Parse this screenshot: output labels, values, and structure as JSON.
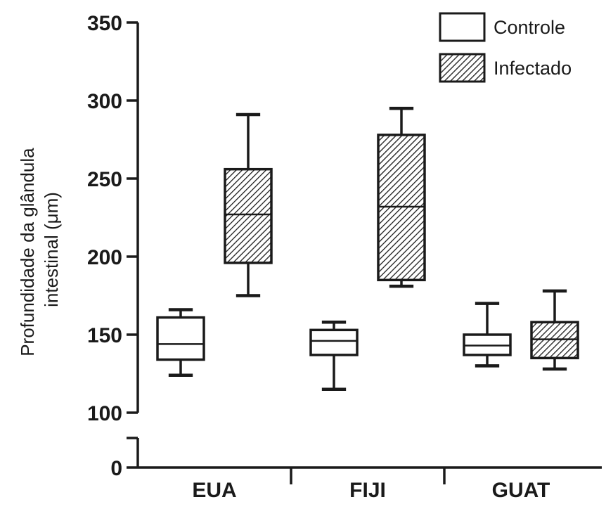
{
  "chart_data": {
    "type": "box",
    "categories": [
      "EUA",
      "FIJI",
      "GUAT"
    ],
    "ylabel_lines": [
      "Profundidade da glândula",
      "intestinal (μm)"
    ],
    "yticks": [
      100,
      150,
      200,
      250,
      300,
      350
    ],
    "ytick_zero": 0,
    "ylim": [
      100,
      350
    ],
    "axis_break": true,
    "legend_position": "top-right",
    "colors": {
      "line": "#1a1a1a",
      "controle_fill": "#ffffff",
      "infectado_hatch": "#1a1a1a"
    },
    "series": [
      {
        "name": "Controle",
        "boxes": [
          {
            "category": "EUA",
            "min": 124,
            "q1": 134,
            "median": 144,
            "q3": 161,
            "max": 166
          },
          {
            "category": "FIJI",
            "min": 115,
            "q1": 137,
            "median": 146,
            "q3": 153,
            "max": 158
          },
          {
            "category": "GUAT",
            "min": 130,
            "q1": 137,
            "median": 143,
            "q3": 150,
            "max": 170
          }
        ]
      },
      {
        "name": "Infectado",
        "boxes": [
          {
            "category": "EUA",
            "min": 175,
            "q1": 196,
            "median": 227,
            "q3": 256,
            "max": 291
          },
          {
            "category": "FIJI",
            "min": 181,
            "q1": 185,
            "median": 232,
            "q3": 278,
            "max": 295
          },
          {
            "category": "GUAT",
            "min": 128,
            "q1": 135,
            "median": 147,
            "q3": 158,
            "max": 178
          }
        ]
      }
    ]
  }
}
